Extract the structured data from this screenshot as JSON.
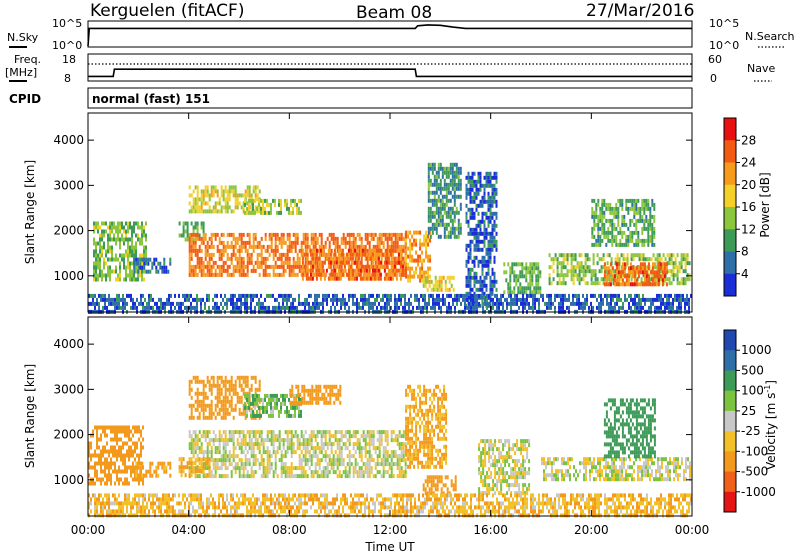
{
  "header": {
    "station": "Kerguelen (fitACF)",
    "beam": "Beam 08",
    "date": "27/Mar/2016"
  },
  "panels": {
    "nsky_label": "N.Sky",
    "nsearch_label": "N.Search",
    "nsky_ticks": [
      "10^5",
      "10^0"
    ],
    "freq_label_top": "Freq.",
    "freq_label_unit": "[MHz]",
    "freq_ticks": [
      "18",
      "8"
    ],
    "nave_label": "Nave",
    "nave_ticks": [
      "60",
      "0"
    ],
    "cpid_label": "CPID",
    "cpid_value": "normal (fast) 151"
  },
  "power_colorbar": {
    "label": "Power [dB]",
    "ticks": [
      "28",
      "24",
      "20",
      "16",
      "12",
      "8",
      "4"
    ],
    "colors": [
      "#e81010",
      "#f35a12",
      "#f79b1c",
      "#f3d02a",
      "#8cc63c",
      "#3d9b57",
      "#2f6fa8",
      "#1a2ed8"
    ]
  },
  "velocity_colorbar": {
    "label": "Velocity [m s",
    "label_sup": "-1",
    "label_end": "]",
    "ticks": [
      "1000",
      "500",
      "100",
      "25",
      "-25",
      "-100",
      "-500",
      "-1000"
    ],
    "colors": [
      "#2048b0",
      "#2f6fa8",
      "#3d9b57",
      "#7cc440",
      "#c8c8c8",
      "#f2c028",
      "#f39a1c",
      "#f06018",
      "#e61515"
    ]
  },
  "axes": {
    "ylabel": "Slant Range [km]",
    "xlabel": "Time UT",
    "y_ticks": [
      "4000",
      "3000",
      "2000",
      "1000"
    ],
    "x_ticks": [
      "00:00",
      "04:00",
      "08:00",
      "12:00",
      "16:00",
      "20:00",
      "00:00"
    ]
  },
  "chart_data": [
    {
      "type": "line",
      "name": "N.Sky / N.Search",
      "x_hours": [
        0,
        0.05,
        13,
        13.1,
        13.5,
        14,
        14.5,
        15,
        24
      ],
      "nsky_log10": [
        0,
        4.0,
        4.0,
        4.6,
        4.8,
        4.7,
        4.3,
        4.0,
        4.0
      ],
      "nsearch_log10": [
        4.2,
        4.2,
        4.2,
        4.2,
        4.2,
        4.2,
        4.2,
        4.2,
        4.2
      ]
    },
    {
      "type": "line",
      "name": "Freq / Nave",
      "freq_mhz": {
        "x_hours": [
          0,
          1,
          1.05,
          13,
          13.05,
          24
        ],
        "y": [
          9.5,
          9.5,
          12.5,
          12.5,
          9.5,
          9.5
        ]
      },
      "nave": {
        "x_hours": [
          0,
          24
        ],
        "y": [
          40,
          40
        ]
      },
      "freq_ylim": [
        8,
        18
      ],
      "nave_ylim": [
        0,
        60
      ]
    },
    {
      "type": "heatmap",
      "name": "Power",
      "x_range_hours": [
        0,
        24
      ],
      "ylim_km": [
        200,
        4600
      ],
      "regions": [
        {
          "x": [
            0.2,
            2.3
          ],
          "y": [
            900,
            2200
          ],
          "v": 13
        },
        {
          "x": [
            1.8,
            3.3
          ],
          "y": [
            1100,
            1400
          ],
          "v": 6
        },
        {
          "x": [
            3.6,
            4.6
          ],
          "y": [
            1800,
            2200
          ],
          "v": 12
        },
        {
          "x": [
            4.0,
            12.6
          ],
          "y": [
            1000,
            1950
          ],
          "v": 24
        },
        {
          "x": [
            8.5,
            12.5
          ],
          "y": [
            900,
            1600
          ],
          "v": 25
        },
        {
          "x": [
            4.0,
            6.8
          ],
          "y": [
            2400,
            3000
          ],
          "v": 17
        },
        {
          "x": [
            6.2,
            8.5
          ],
          "y": [
            2400,
            2700
          ],
          "v": 15
        },
        {
          "x": [
            12.6,
            13.6
          ],
          "y": [
            900,
            2000
          ],
          "v": 22
        },
        {
          "x": [
            13.3,
            14.5
          ],
          "y": [
            700,
            1000
          ],
          "v": 18
        },
        {
          "x": [
            13.5,
            14.8
          ],
          "y": [
            1900,
            3500
          ],
          "v": 9
        },
        {
          "x": [
            15.0,
            16.2
          ],
          "y": [
            300,
            3300
          ],
          "v": 5
        },
        {
          "x": [
            16.5,
            18.0
          ],
          "y": [
            600,
            1300
          ],
          "v": 12
        },
        {
          "x": [
            18.3,
            23.9
          ],
          "y": [
            800,
            1500
          ],
          "v": 14
        },
        {
          "x": [
            20.5,
            23.0
          ],
          "y": [
            800,
            1300
          ],
          "v": 25
        },
        {
          "x": [
            20.0,
            22.5
          ],
          "y": [
            1700,
            2700
          ],
          "v": 11
        },
        {
          "x": [
            0.0,
            24.0
          ],
          "y": [
            200,
            600
          ],
          "v": 5
        }
      ]
    },
    {
      "type": "heatmap",
      "name": "Velocity",
      "x_range_hours": [
        0,
        24
      ],
      "ylim_km": [
        200,
        4600
      ],
      "regions": [
        {
          "x": [
            0.0,
            2.2
          ],
          "y": [
            900,
            2200
          ],
          "v": -200
        },
        {
          "x": [
            1.8,
            3.3
          ],
          "y": [
            1100,
            1400
          ],
          "v": -150
        },
        {
          "x": [
            4.0,
            12.6
          ],
          "y": [
            1100,
            2100
          ],
          "v": 0
        },
        {
          "x": [
            3.6,
            4.8
          ],
          "y": [
            1100,
            1500
          ],
          "v": -100
        },
        {
          "x": [
            4.0,
            6.8
          ],
          "y": [
            2400,
            3300
          ],
          "v": -300
        },
        {
          "x": [
            6.2,
            8.5
          ],
          "y": [
            2400,
            2900
          ],
          "v": 80
        },
        {
          "x": [
            8.0,
            10.0
          ],
          "y": [
            2700,
            3100
          ],
          "v": -200
        },
        {
          "x": [
            12.6,
            14.2
          ],
          "y": [
            1300,
            3100
          ],
          "v": -120
        },
        {
          "x": [
            13.3,
            14.6
          ],
          "y": [
            700,
            1100
          ],
          "v": -300
        },
        {
          "x": [
            15.5,
            17.5
          ],
          "y": [
            700,
            1900
          ],
          "v": 0
        },
        {
          "x": [
            18.0,
            23.9
          ],
          "y": [
            1000,
            1500
          ],
          "v": 0
        },
        {
          "x": [
            20.5,
            22.5
          ],
          "y": [
            1500,
            2800
          ],
          "v": 400
        },
        {
          "x": [
            0.0,
            24.0
          ],
          "y": [
            200,
            700
          ],
          "v": -80
        }
      ]
    }
  ]
}
